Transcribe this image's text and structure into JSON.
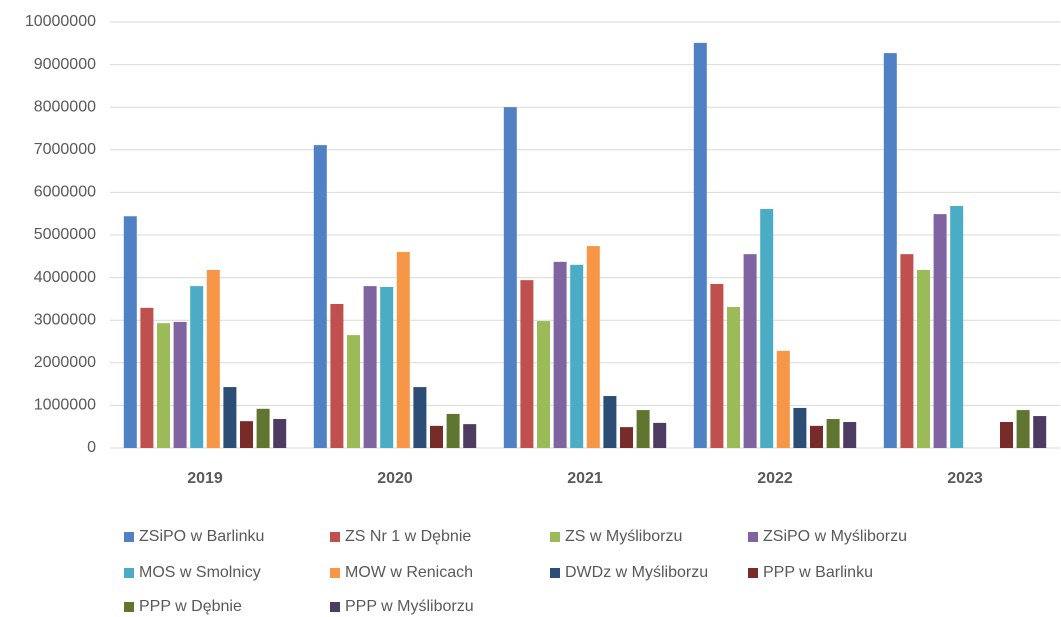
{
  "chart_data": {
    "type": "bar",
    "categories": [
      "2019",
      "2020",
      "2021",
      "2022",
      "2023"
    ],
    "series": [
      {
        "name": "ZSiPO w Barlinku",
        "color": "#4f81c4",
        "values": [
          5440000,
          7110000,
          8000000,
          9510000,
          9270000
        ]
      },
      {
        "name": "ZS Nr 1 w Dębnie",
        "color": "#c0504d",
        "values": [
          3290000,
          3380000,
          3940000,
          3850000,
          4550000
        ]
      },
      {
        "name": "ZS w Myśliborzu",
        "color": "#9bbb59",
        "values": [
          2930000,
          2650000,
          2980000,
          3310000,
          4180000
        ]
      },
      {
        "name": "ZSiPO w Myśliborzu",
        "color": "#8064a2",
        "values": [
          2960000,
          3800000,
          4370000,
          4550000,
          5490000
        ]
      },
      {
        "name": "MOS w Smolnicy",
        "color": "#4bacc6",
        "values": [
          3800000,
          3780000,
          4300000,
          5610000,
          5680000
        ]
      },
      {
        "name": "MOW w Renicach",
        "color": "#f79646",
        "values": [
          4180000,
          4600000,
          4740000,
          2280000,
          null
        ]
      },
      {
        "name": "DWDz w Myśliborzu",
        "color": "#2c4d75",
        "values": [
          1430000,
          1430000,
          1220000,
          940000,
          null
        ]
      },
      {
        "name": "PPP w Barlinku",
        "color": "#772c2a",
        "values": [
          630000,
          520000,
          490000,
          520000,
          610000
        ]
      },
      {
        "name": "PPP w Dębnie",
        "color": "#5f7530",
        "values": [
          920000,
          800000,
          890000,
          680000,
          890000
        ]
      },
      {
        "name": "PPP w Myśliborzu",
        "color": "#4d3b62",
        "values": [
          680000,
          560000,
          590000,
          610000,
          750000
        ]
      }
    ],
    "ylim": [
      0,
      10000000
    ],
    "yticks": [
      0,
      1000000,
      2000000,
      3000000,
      4000000,
      5000000,
      6000000,
      7000000,
      8000000,
      9000000,
      10000000
    ],
    "grid": true,
    "legend": "bottom"
  }
}
